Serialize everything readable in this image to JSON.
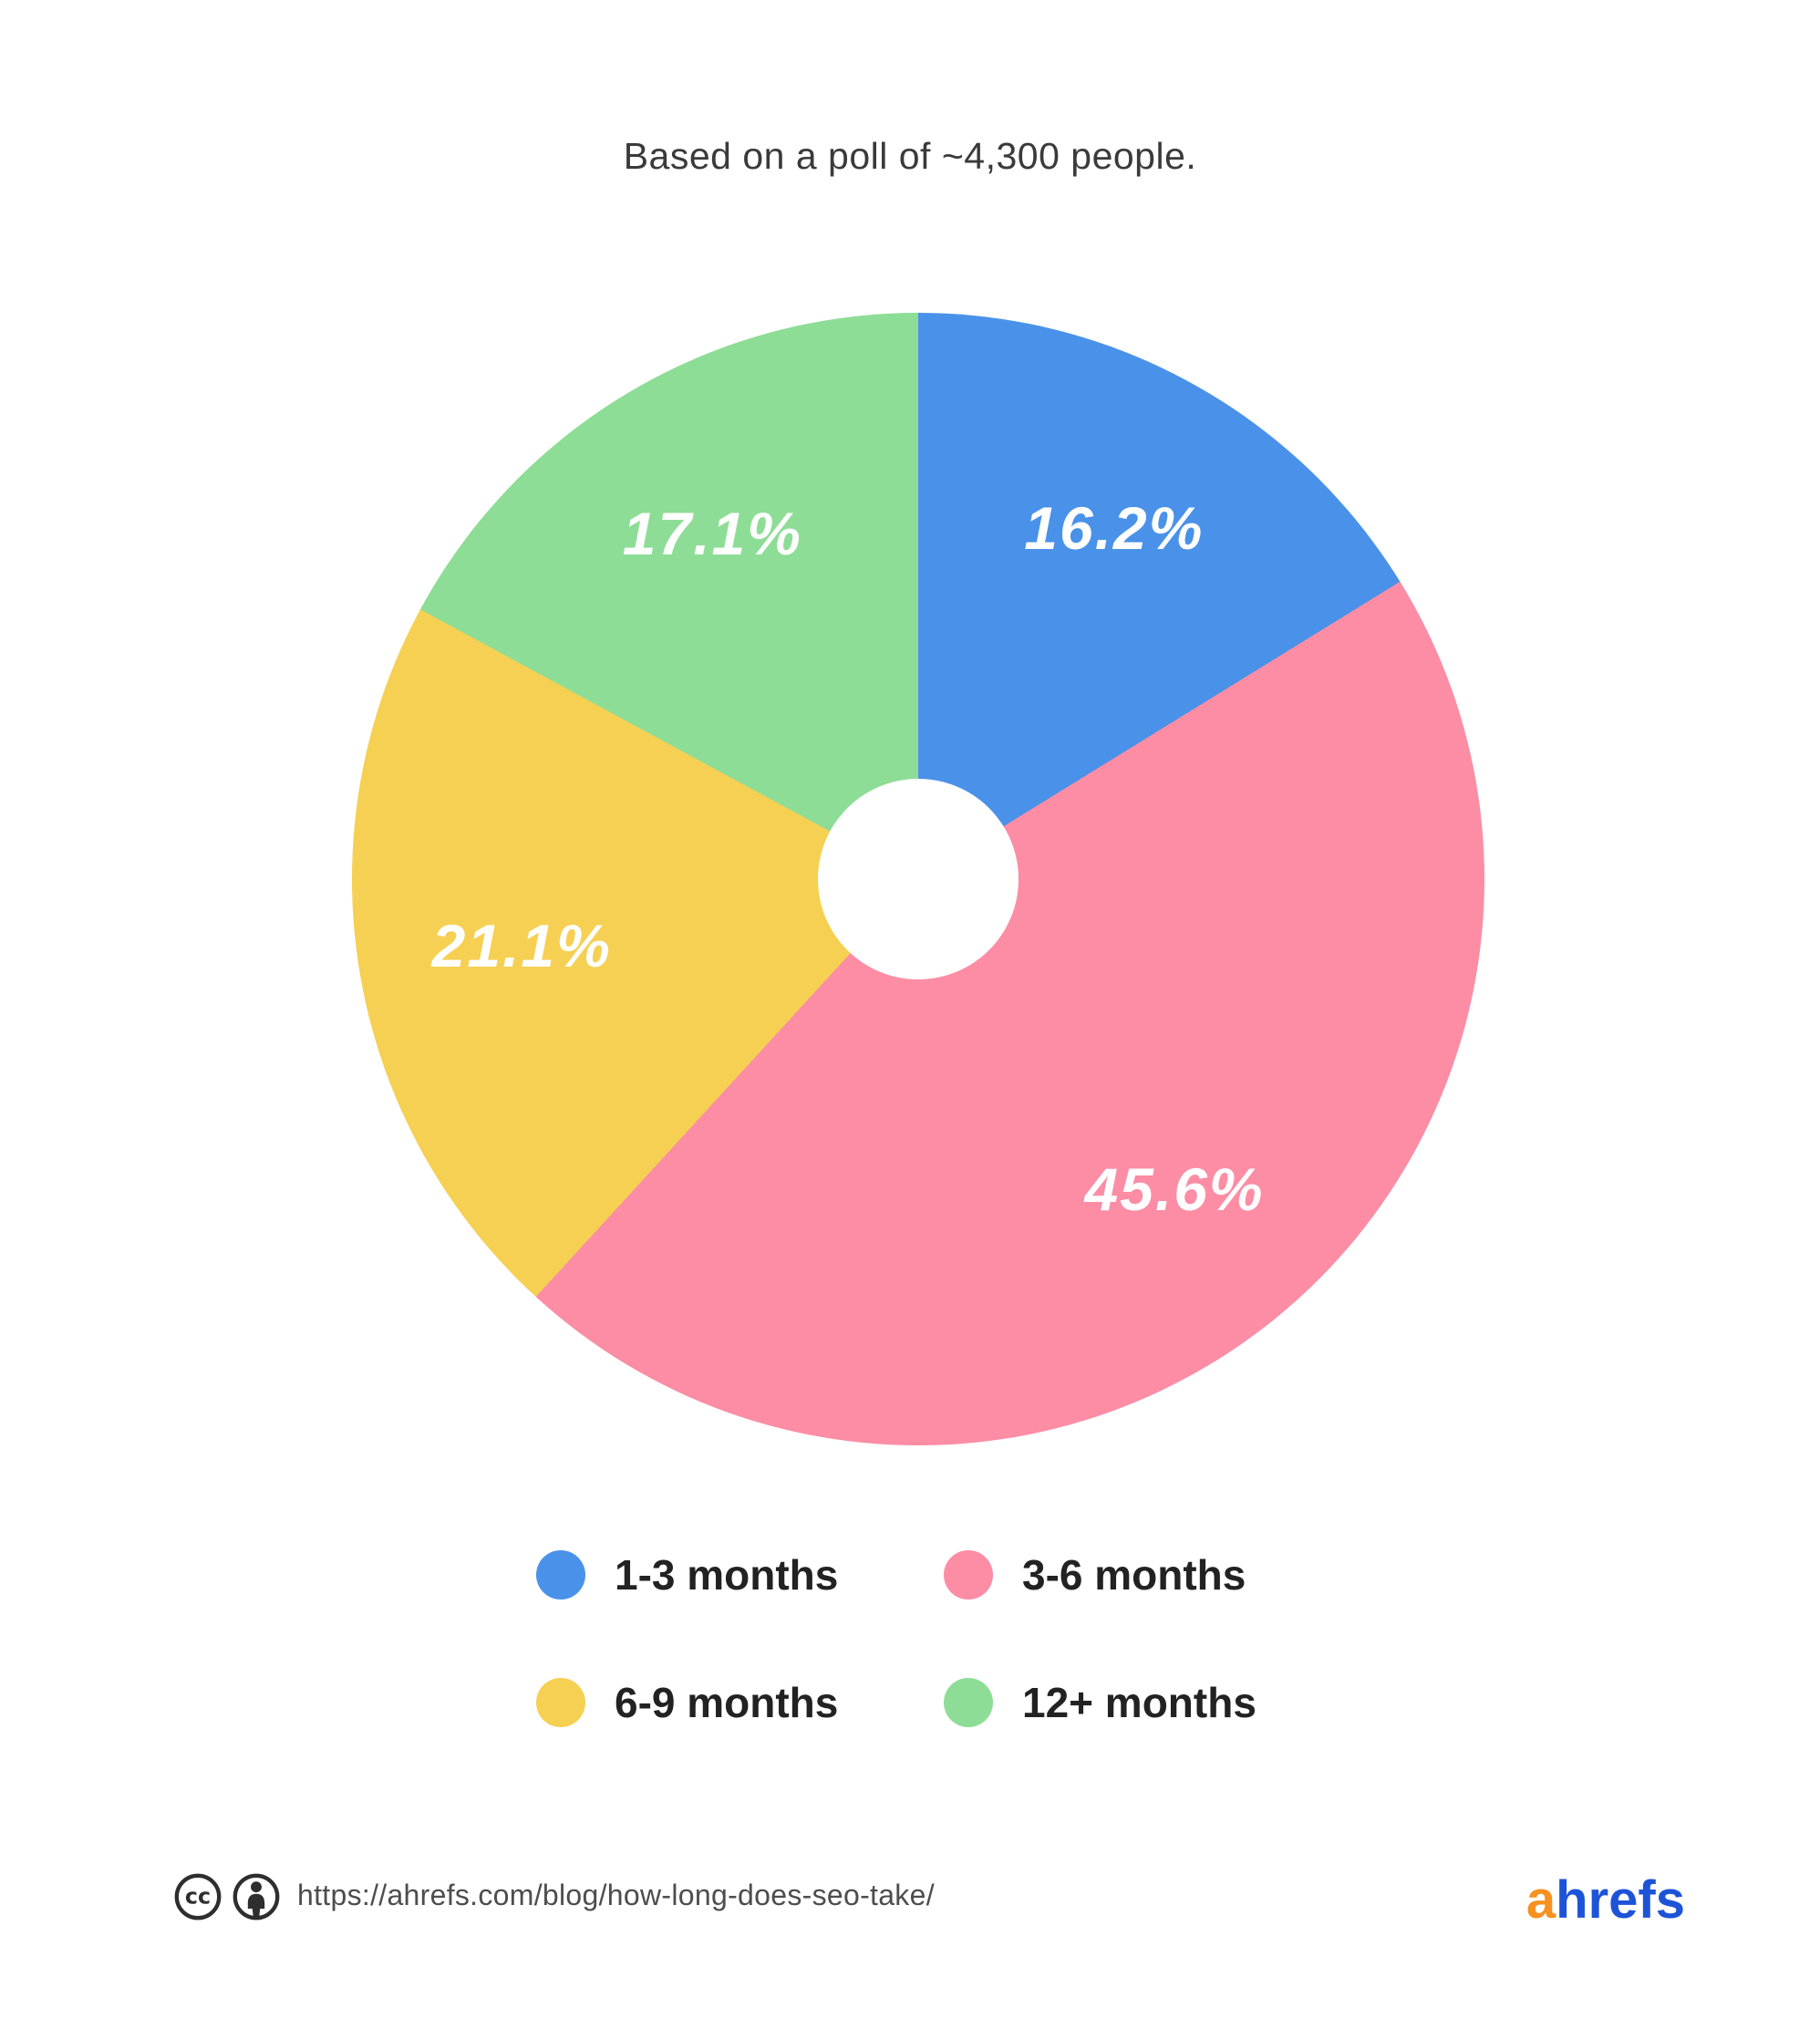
{
  "title": "Based on a poll of ~4,300 people.",
  "chart_data": {
    "type": "pie",
    "subtype": "donut",
    "title": "Based on a poll of ~4,300 people.",
    "categories": [
      "1-3 months",
      "3-6 months",
      "6-9 months",
      "12+ months"
    ],
    "values": [
      16.2,
      45.6,
      21.1,
      17.1
    ],
    "value_labels": [
      "16.2%",
      "45.6%",
      "21.1%",
      "17.1%"
    ],
    "colors": [
      "#4a92e9",
      "#fc8da4",
      "#f5d052",
      "#8edd96"
    ],
    "start_angle_deg": 0,
    "direction": "clockwise",
    "legend_position": "bottom",
    "legend_layout": "2x2-grid"
  },
  "footer": {
    "license_icons": [
      "cc-icon",
      "attribution-icon"
    ],
    "source_url": "https://ahrefs.com/blog/how-long-does-seo-take/",
    "logo": {
      "prefix": "a",
      "suffix": "hrefs",
      "prefix_color": "#f79120",
      "suffix_color": "#1d54d7"
    }
  }
}
